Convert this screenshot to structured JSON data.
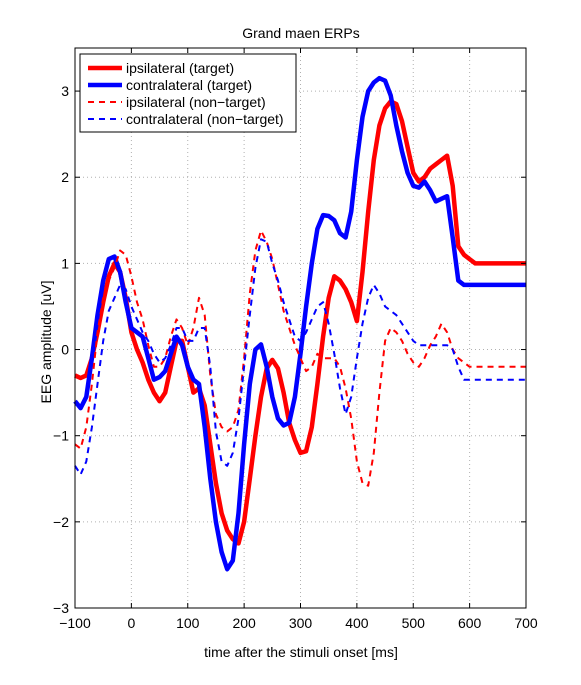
{
  "chart_data": {
    "type": "line",
    "title": "Grand maen ERPs",
    "xlabel": "time after the stimuli onset [ms]",
    "ylabel": "EEG amplitude [uV]",
    "xlim": [
      -100,
      700
    ],
    "ylim": [
      -3,
      3.5
    ],
    "xticks": [
      -100,
      0,
      100,
      200,
      300,
      400,
      500,
      600,
      700
    ],
    "yticks": [
      -3,
      -2,
      -1,
      0,
      1,
      2,
      3
    ],
    "xtick_labels": [
      "−100",
      "0",
      "100",
      "200",
      "300",
      "400",
      "500",
      "600",
      "700"
    ],
    "ytick_labels": [
      "−3",
      "−2",
      "−1",
      "0",
      "1",
      "2",
      "3"
    ],
    "grid": true,
    "legend_position": "top-left",
    "series": [
      {
        "name": "ipsilateral (target)",
        "color": "#ff0000",
        "style": "solid",
        "width": "thick",
        "x": [
          -100,
          -90,
          -80,
          -70,
          -60,
          -50,
          -40,
          -30,
          -20,
          -10,
          0,
          10,
          20,
          30,
          40,
          50,
          60,
          70,
          80,
          90,
          100,
          110,
          120,
          130,
          140,
          150,
          160,
          170,
          180,
          190,
          200,
          210,
          220,
          230,
          240,
          250,
          260,
          270,
          280,
          290,
          300,
          310,
          320,
          330,
          340,
          350,
          360,
          370,
          380,
          390,
          400,
          410,
          420,
          430,
          440,
          450,
          460,
          470,
          480,
          490,
          500,
          510,
          520,
          530,
          540,
          550,
          560,
          570,
          580,
          590,
          600,
          610,
          620,
          630,
          640,
          650,
          660,
          670,
          680,
          690,
          700
        ],
        "y": [
          -0.3,
          -0.33,
          -0.3,
          -0.1,
          0.2,
          0.55,
          0.85,
          1.0,
          0.9,
          0.6,
          0.2,
          0.0,
          -0.15,
          -0.35,
          -0.5,
          -0.6,
          -0.5,
          -0.2,
          0.1,
          0.1,
          -0.2,
          -0.5,
          -0.45,
          -0.65,
          -1.1,
          -1.55,
          -1.9,
          -2.1,
          -2.2,
          -2.25,
          -2.0,
          -1.5,
          -1.0,
          -0.55,
          -0.22,
          -0.12,
          -0.22,
          -0.5,
          -0.85,
          -1.05,
          -1.2,
          -1.18,
          -0.9,
          -0.4,
          0.15,
          0.6,
          0.85,
          0.8,
          0.7,
          0.55,
          0.33,
          0.9,
          1.6,
          2.2,
          2.6,
          2.8,
          2.88,
          2.85,
          2.65,
          2.35,
          2.05,
          1.95,
          2.0,
          2.1,
          2.15,
          2.2,
          2.25,
          1.9,
          1.2,
          1.1,
          1.05,
          1.0,
          1.0,
          1.0,
          1.0,
          1.0,
          1.0,
          1.0,
          1.0,
          1.0,
          1.0
        ]
      },
      {
        "name": "contralateral (target)",
        "color": "#0000ff",
        "style": "solid",
        "width": "thick",
        "x": [
          -100,
          -90,
          -80,
          -70,
          -60,
          -50,
          -40,
          -30,
          -20,
          -10,
          0,
          10,
          20,
          30,
          40,
          50,
          60,
          70,
          80,
          90,
          100,
          110,
          120,
          130,
          140,
          150,
          160,
          170,
          180,
          190,
          200,
          210,
          220,
          230,
          240,
          250,
          260,
          270,
          280,
          290,
          300,
          310,
          320,
          330,
          340,
          350,
          360,
          370,
          380,
          390,
          400,
          410,
          420,
          430,
          440,
          450,
          460,
          470,
          480,
          490,
          500,
          510,
          520,
          530,
          540,
          550,
          560,
          570,
          580,
          590,
          600,
          610,
          620,
          630,
          640,
          650,
          660,
          670,
          680,
          690,
          700
        ],
        "y": [
          -0.6,
          -0.68,
          -0.55,
          -0.1,
          0.4,
          0.8,
          1.05,
          1.08,
          0.9,
          0.55,
          0.25,
          0.2,
          0.15,
          -0.1,
          -0.35,
          -0.32,
          -0.25,
          -0.05,
          0.15,
          0.05,
          -0.2,
          -0.35,
          -0.4,
          -0.9,
          -1.5,
          -2.0,
          -2.35,
          -2.55,
          -2.45,
          -1.9,
          -1.1,
          -0.4,
          0.0,
          0.06,
          -0.2,
          -0.55,
          -0.8,
          -0.88,
          -0.85,
          -0.55,
          -0.05,
          0.5,
          1.0,
          1.4,
          1.56,
          1.55,
          1.5,
          1.35,
          1.3,
          1.6,
          2.2,
          2.7,
          3.0,
          3.1,
          3.15,
          3.12,
          2.95,
          2.6,
          2.3,
          2.05,
          1.9,
          1.88,
          1.95,
          1.85,
          1.72,
          1.75,
          1.78,
          1.3,
          0.8,
          0.75,
          0.75,
          0.75,
          0.75,
          0.75,
          0.75,
          0.75,
          0.75,
          0.75,
          0.75,
          0.75,
          0.75
        ]
      },
      {
        "name": "ipsilateral (non−target)",
        "color": "#ff0000",
        "style": "dashed",
        "width": "thin",
        "x": [
          -100,
          -90,
          -80,
          -70,
          -60,
          -50,
          -40,
          -30,
          -20,
          -10,
          0,
          10,
          20,
          30,
          40,
          50,
          60,
          70,
          80,
          90,
          100,
          110,
          120,
          130,
          140,
          150,
          160,
          170,
          180,
          190,
          200,
          210,
          220,
          230,
          240,
          250,
          260,
          270,
          280,
          290,
          300,
          310,
          320,
          330,
          340,
          350,
          360,
          370,
          380,
          390,
          400,
          410,
          420,
          430,
          440,
          450,
          460,
          470,
          480,
          490,
          500,
          510,
          520,
          530,
          540,
          550,
          560,
          570,
          580,
          590,
          600,
          610,
          620,
          630,
          640,
          650,
          660,
          670,
          680,
          690,
          700
        ],
        "y": [
          -1.1,
          -1.15,
          -0.9,
          -0.4,
          0.2,
          0.6,
          0.8,
          0.95,
          1.15,
          1.1,
          0.85,
          0.55,
          0.35,
          0.05,
          -0.2,
          -0.2,
          -0.1,
          0.15,
          0.35,
          0.25,
          0.05,
          0.25,
          0.6,
          0.4,
          -0.3,
          -0.75,
          -0.9,
          -0.95,
          -0.9,
          -0.7,
          -0.1,
          0.65,
          1.15,
          1.38,
          1.25,
          1.05,
          0.75,
          0.45,
          0.25,
          0.05,
          -0.1,
          -0.25,
          -0.2,
          -0.05,
          -0.1,
          -0.1,
          -0.1,
          -0.2,
          -0.45,
          -0.8,
          -1.3,
          -1.55,
          -1.58,
          -1.2,
          -0.5,
          0.1,
          0.25,
          0.2,
          0.1,
          -0.05,
          -0.15,
          -0.2,
          -0.1,
          0.05,
          0.15,
          0.3,
          0.2,
          0.0,
          -0.1,
          -0.15,
          -0.2,
          -0.2,
          -0.2,
          -0.2,
          -0.2,
          -0.2,
          -0.2,
          -0.2,
          -0.2,
          -0.2,
          -0.2
        ]
      },
      {
        "name": "contralateral (non−target)",
        "color": "#0000ff",
        "style": "dashed",
        "width": "thin",
        "x": [
          -100,
          -90,
          -80,
          -70,
          -60,
          -50,
          -40,
          -30,
          -20,
          -10,
          0,
          10,
          20,
          30,
          40,
          50,
          60,
          70,
          80,
          90,
          100,
          110,
          120,
          130,
          140,
          150,
          160,
          170,
          180,
          190,
          200,
          210,
          220,
          230,
          240,
          250,
          260,
          270,
          280,
          290,
          300,
          310,
          320,
          330,
          340,
          350,
          360,
          370,
          380,
          390,
          400,
          410,
          420,
          430,
          440,
          450,
          460,
          470,
          480,
          490,
          500,
          510,
          520,
          530,
          540,
          550,
          560,
          570,
          580,
          590,
          600,
          610,
          620,
          630,
          640,
          650,
          660,
          670,
          680,
          690,
          700
        ],
        "y": [
          -1.35,
          -1.45,
          -1.3,
          -0.9,
          -0.4,
          0.1,
          0.45,
          0.6,
          0.75,
          0.7,
          0.5,
          0.35,
          0.2,
          0.1,
          -0.05,
          -0.15,
          -0.1,
          0.05,
          0.25,
          0.25,
          0.1,
          0.1,
          0.25,
          0.25,
          -0.2,
          -0.95,
          -1.3,
          -1.35,
          -1.2,
          -0.8,
          -0.2,
          0.4,
          0.95,
          1.28,
          1.25,
          1.0,
          0.8,
          0.55,
          0.35,
          0.15,
          0.1,
          0.2,
          0.35,
          0.5,
          0.55,
          0.3,
          -0.05,
          -0.45,
          -0.75,
          -0.55,
          -0.1,
          0.3,
          0.6,
          0.75,
          0.65,
          0.5,
          0.45,
          0.4,
          0.3,
          0.2,
          0.1,
          0.05,
          0.05,
          0.05,
          0.05,
          0.05,
          0.05,
          0.0,
          -0.2,
          -0.35,
          -0.35,
          -0.35,
          -0.35,
          -0.35,
          -0.35,
          -0.35,
          -0.35,
          -0.35,
          -0.35,
          -0.35,
          -0.35
        ]
      }
    ]
  }
}
